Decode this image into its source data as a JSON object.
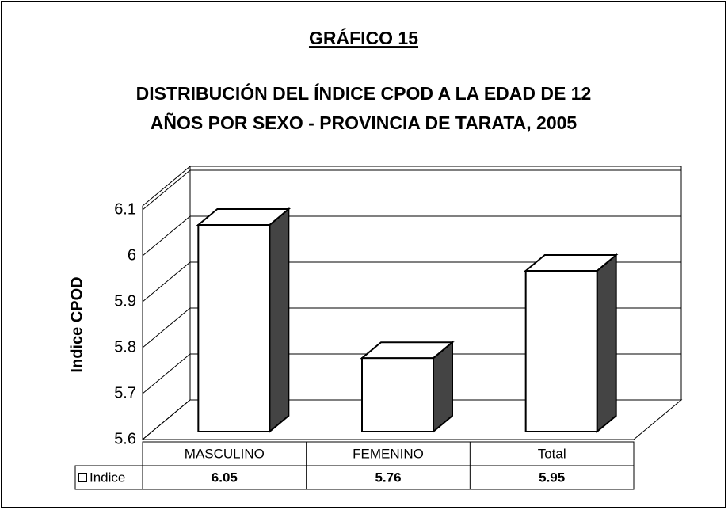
{
  "chart_data": {
    "type": "bar3d",
    "title": "GRÁFICO 15",
    "subtitle": [
      "DISTRIBUCIÓN DEL ÍNDICE CPOD A LA EDAD DE 12",
      "AÑOS POR SEXO - PROVINCIA DE TARATA,  2005"
    ],
    "y_label": "Indice CPOD",
    "categories": [
      "MASCULINO",
      "FEMENINO",
      "Total"
    ],
    "series": [
      {
        "name": "Indice",
        "color": "#ffffff",
        "values": [
          6.05,
          5.76,
          5.95
        ]
      }
    ],
    "ylim": [
      5.6,
      6.1
    ],
    "yticks": [
      5.6,
      5.7,
      5.8,
      5.9,
      6,
      6.1
    ],
    "grid": true
  }
}
